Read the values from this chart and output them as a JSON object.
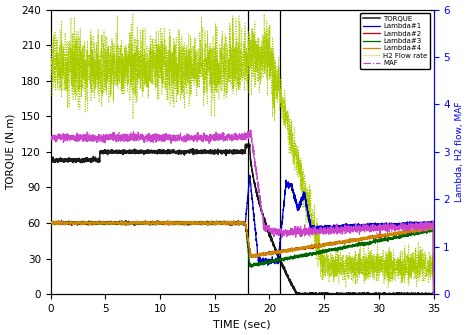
{
  "xlabel": "TIME (sec)",
  "ylabel_left": "TORQUE (N.m)",
  "ylabel_right": "Lambda, H2 flow, MAF",
  "xlim": [
    0,
    35
  ],
  "ylim_left": [
    0,
    240
  ],
  "ylim_right": [
    0,
    6
  ],
  "yticks_left": [
    0,
    30,
    60,
    90,
    120,
    150,
    180,
    210,
    240
  ],
  "yticks_right": [
    0,
    1,
    2,
    3,
    4,
    5,
    6
  ],
  "xticks": [
    0,
    5,
    10,
    15,
    20,
    25,
    30,
    35
  ],
  "vlines": [
    18.0,
    21.0
  ],
  "legend_labels": [
    "TORQUE",
    "Lambda#1",
    "Lambda#2",
    "Lambda#3",
    "Lambda#4",
    "H2 Flow rate",
    "MAF"
  ],
  "colors": {
    "torque": "#1a1a1a",
    "lambda1": "#0000cc",
    "lambda2": "#cc0000",
    "lambda3": "#006600",
    "lambda4": "#cc8800",
    "h2flow": "#aacc00",
    "maf": "#cc44cc"
  },
  "figsize": [
    4.7,
    3.35
  ],
  "dpi": 100
}
